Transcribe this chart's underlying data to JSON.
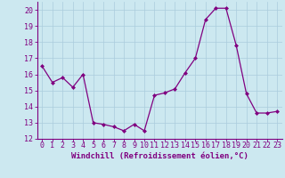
{
  "x": [
    0,
    1,
    2,
    3,
    4,
    5,
    6,
    7,
    8,
    9,
    10,
    11,
    12,
    13,
    14,
    15,
    16,
    17,
    18,
    19,
    20,
    21,
    22,
    23
  ],
  "y": [
    16.5,
    15.5,
    15.8,
    15.2,
    16.0,
    13.0,
    12.9,
    12.75,
    12.5,
    12.9,
    12.5,
    14.7,
    14.85,
    15.1,
    16.1,
    17.0,
    19.4,
    20.1,
    20.1,
    17.8,
    14.8,
    13.6,
    13.6,
    13.7
  ],
  "xlabel": "Windchill (Refroidissement éolien,°C)",
  "xlim": [
    -0.5,
    23.5
  ],
  "ylim": [
    12,
    20.5
  ],
  "yticks": [
    12,
    13,
    14,
    15,
    16,
    17,
    18,
    19,
    20
  ],
  "xticks": [
    0,
    1,
    2,
    3,
    4,
    5,
    6,
    7,
    8,
    9,
    10,
    11,
    12,
    13,
    14,
    15,
    16,
    17,
    18,
    19,
    20,
    21,
    22,
    23
  ],
  "line_color": "#800080",
  "marker": "D",
  "marker_size": 2,
  "background_color": "#cce8f0",
  "grid_color": "#aaccdd",
  "tick_label_color": "#800080",
  "xlabel_color": "#800080",
  "xlabel_fontsize": 6.5,
  "tick_fontsize": 6.0,
  "ytick_labels": [
    "12",
    "13",
    "14",
    "15",
    "16",
    "17",
    "18",
    "19",
    "20"
  ]
}
